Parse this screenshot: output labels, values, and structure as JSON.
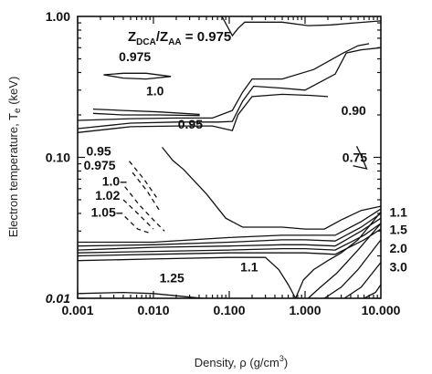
{
  "chart_data": {
    "type": "contour",
    "title": "Z_DCA/Z_AA = 0.975",
    "title_parts": {
      "z1": "Z",
      "sub1": "DCA",
      "sep": "/Z",
      "sub2": "AA",
      "value": " = 0.975"
    },
    "xlabel": "Density, ρ (g/cm",
    "xlabel_sup": "3",
    "xlabel_close": ")",
    "ylabel": "Electron temperature, T",
    "ylabel_sub": "e",
    "ylabel_unit": " (keV)",
    "x_scale": "log",
    "y_scale": "log",
    "xlim": [
      0.001,
      10.0
    ],
    "ylim": [
      0.01,
      1.0
    ],
    "x_ticks": [
      {
        "value": 0.001,
        "label": "0.001"
      },
      {
        "value": 0.01,
        "label": "0.010"
      },
      {
        "value": 0.1,
        "label": "0.100"
      },
      {
        "value": 1.0,
        "label": "1.000"
      },
      {
        "value": 10.0,
        "label": "10.000"
      }
    ],
    "y_ticks": [
      {
        "value": 1.0,
        "label": "1.00"
      },
      {
        "value": 0.1,
        "label": "0.10"
      },
      {
        "value": 0.01,
        "label": "0.01"
      }
    ],
    "contour_labels": [
      {
        "text": "0.975",
        "x": 0.0035,
        "y": 0.48
      },
      {
        "text": "1.0",
        "x": 0.008,
        "y": 0.275
      },
      {
        "text": "0.95",
        "x": 0.021,
        "y": 0.16
      },
      {
        "text": "0.90",
        "x": 3.0,
        "y": 0.2
      },
      {
        "text": "0.75",
        "x": 3.1,
        "y": 0.093
      },
      {
        "text": "0.95",
        "x": 0.0013,
        "y": 0.103
      },
      {
        "text": "0.975",
        "x": 0.0012,
        "y": 0.082
      },
      {
        "text": "1.0–",
        "x": 0.0021,
        "y": 0.063
      },
      {
        "text": "1.02",
        "x": 0.0017,
        "y": 0.05
      },
      {
        "text": "1.05–",
        "x": 0.0015,
        "y": 0.038
      },
      {
        "text": "1.1",
        "x": 0.14,
        "y": 0.0155
      },
      {
        "text": "1.25",
        "x": 0.012,
        "y": 0.013
      },
      {
        "text": "1.1",
        "x": 13.0,
        "y": 0.038
      },
      {
        "text": "1.5",
        "x": 13.0,
        "y": 0.0285
      },
      {
        "text": "2.0",
        "x": 13.0,
        "y": 0.021
      },
      {
        "text": "3.0",
        "x": 13.0,
        "y": 0.0155
      }
    ],
    "contours": [
      {
        "label": "0.975",
        "style": "solid",
        "points": [
          [
            0.08,
            1.0
          ],
          [
            0.11,
            0.73
          ],
          [
            0.13,
            0.82
          ],
          [
            0.16,
            0.91
          ],
          [
            0.26,
            0.91
          ],
          [
            0.5,
            0.91
          ],
          [
            1.1,
            0.86
          ],
          [
            2.2,
            0.87
          ],
          [
            4.5,
            0.9
          ],
          [
            10.0,
            0.93
          ]
        ]
      },
      {
        "label": "0.975",
        "style": "solid",
        "points": [
          [
            0.0022,
            0.385
          ],
          [
            0.004,
            0.365
          ],
          [
            0.008,
            0.36
          ],
          [
            0.017,
            0.375
          ],
          [
            0.008,
            0.395
          ],
          [
            0.004,
            0.395
          ],
          [
            0.0022,
            0.385
          ]
        ]
      },
      {
        "label": "1.0",
        "style": "solid",
        "points": [
          [
            0.0016,
            0.22
          ],
          [
            0.004,
            0.215
          ],
          [
            0.012,
            0.21
          ],
          [
            0.04,
            0.202
          ],
          [
            0.04,
            0.198
          ],
          [
            0.012,
            0.2
          ],
          [
            0.004,
            0.2
          ],
          [
            0.0016,
            0.205
          ]
        ]
      },
      {
        "label": "",
        "style": "solid",
        "points": [
          [
            0.001,
            0.183
          ],
          [
            0.005,
            0.188
          ],
          [
            0.02,
            0.19
          ],
          [
            0.06,
            0.19
          ],
          [
            0.11,
            0.215
          ],
          [
            0.15,
            0.29
          ],
          [
            0.2,
            0.36
          ],
          [
            0.5,
            0.36
          ],
          [
            1.3,
            0.42
          ],
          [
            3.2,
            0.55
          ],
          [
            5.0,
            0.62
          ],
          [
            7.0,
            0.64
          ]
        ]
      },
      {
        "label": "0.95",
        "style": "solid",
        "points": [
          [
            0.001,
            0.16
          ],
          [
            0.005,
            0.175
          ],
          [
            0.02,
            0.178
          ],
          [
            0.07,
            0.178
          ],
          [
            0.11,
            0.18
          ],
          [
            0.15,
            0.25
          ],
          [
            0.21,
            0.32
          ],
          [
            0.5,
            0.31
          ],
          [
            1.0,
            0.3
          ],
          [
            2.5,
            0.39
          ],
          [
            3.5,
            0.55
          ],
          [
            5.5,
            0.58
          ],
          [
            10.0,
            0.6
          ]
        ]
      },
      {
        "label": "",
        "style": "solid",
        "points": [
          [
            0.001,
            0.15
          ],
          [
            0.005,
            0.165
          ],
          [
            0.02,
            0.167
          ],
          [
            0.06,
            0.167
          ],
          [
            0.11,
            0.155
          ],
          [
            0.13,
            0.2
          ],
          [
            0.2,
            0.27
          ],
          [
            0.5,
            0.28
          ],
          [
            1.2,
            0.275
          ],
          [
            2.0,
            0.27
          ]
        ]
      },
      {
        "label": "0.90",
        "style": "solid",
        "points": [
          [
            0.013,
            0.118
          ],
          [
            0.018,
            0.095
          ],
          [
            0.025,
            0.082
          ],
          [
            0.05,
            0.055
          ],
          [
            0.09,
            0.037
          ],
          [
            0.15,
            0.032
          ],
          [
            0.5,
            0.032
          ],
          [
            1.0,
            0.031
          ],
          [
            1.8,
            0.031
          ],
          [
            3.0,
            0.036
          ],
          [
            5.5,
            0.042
          ],
          [
            10.0,
            0.045
          ]
        ]
      },
      {
        "label": "0.75",
        "style": "solid",
        "points": [
          [
            4.3,
            0.087
          ],
          [
            6.5,
            0.083
          ],
          [
            5.4,
            0.105
          ],
          [
            4.8,
            0.12
          ]
        ]
      },
      {
        "label": "0.95",
        "style": "dashed",
        "points": [
          [
            0.0048,
            0.094
          ],
          [
            0.0075,
            0.07
          ],
          [
            0.011,
            0.052
          ]
        ]
      },
      {
        "label": "0.975",
        "style": "dashed",
        "points": [
          [
            0.0053,
            0.078
          ],
          [
            0.0082,
            0.058
          ],
          [
            0.012,
            0.042
          ]
        ]
      },
      {
        "label": "1.0",
        "style": "dashed",
        "points": [
          [
            0.0042,
            0.062
          ],
          [
            0.0065,
            0.046
          ],
          [
            0.01,
            0.036
          ],
          [
            0.014,
            0.03
          ]
        ]
      },
      {
        "label": "1.02",
        "style": "dashed",
        "points": [
          [
            0.004,
            0.05
          ],
          [
            0.0062,
            0.04
          ],
          [
            0.01,
            0.031
          ]
        ]
      },
      {
        "label": "1.05",
        "style": "dashed",
        "points": [
          [
            0.0042,
            0.038
          ],
          [
            0.0062,
            0.031
          ],
          [
            0.009,
            0.029
          ]
        ]
      },
      {
        "label": "",
        "style": "solid",
        "points": [
          [
            0.001,
            0.025
          ],
          [
            0.01,
            0.025
          ],
          [
            0.1,
            0.027
          ],
          [
            0.5,
            0.028
          ],
          [
            1.0,
            0.028
          ],
          [
            2.5,
            0.028
          ],
          [
            5.5,
            0.035
          ],
          [
            10.0,
            0.043
          ]
        ]
      },
      {
        "label": "",
        "style": "solid",
        "points": [
          [
            0.001,
            0.0235
          ],
          [
            0.01,
            0.024
          ],
          [
            0.1,
            0.025
          ],
          [
            0.5,
            0.026
          ],
          [
            1.0,
            0.026
          ],
          [
            2.5,
            0.0255
          ],
          [
            5.5,
            0.032
          ],
          [
            10.0,
            0.04
          ]
        ]
      },
      {
        "label": "",
        "style": "solid",
        "points": [
          [
            0.001,
            0.022
          ],
          [
            0.01,
            0.023
          ],
          [
            0.1,
            0.0235
          ],
          [
            0.5,
            0.024
          ],
          [
            1.0,
            0.024
          ],
          [
            2.5,
            0.0235
          ],
          [
            5.5,
            0.03
          ],
          [
            10.0,
            0.037
          ]
        ]
      },
      {
        "label": "",
        "style": "solid",
        "points": [
          [
            0.001,
            0.021
          ],
          [
            0.01,
            0.0215
          ],
          [
            0.1,
            0.022
          ],
          [
            0.5,
            0.0225
          ],
          [
            1.0,
            0.0225
          ],
          [
            2.5,
            0.022
          ],
          [
            6.0,
            0.028
          ],
          [
            10.0,
            0.034
          ]
        ]
      },
      {
        "label": "",
        "style": "solid",
        "points": [
          [
            0.001,
            0.02
          ],
          [
            0.01,
            0.0205
          ],
          [
            0.1,
            0.021
          ],
          [
            0.5,
            0.021
          ],
          [
            1.0,
            0.021
          ],
          [
            2.5,
            0.0205
          ],
          [
            6.0,
            0.026
          ],
          [
            10.0,
            0.031
          ]
        ]
      },
      {
        "label": "1.1",
        "style": "solid",
        "points": [
          [
            0.001,
            0.0185
          ],
          [
            0.01,
            0.019
          ],
          [
            0.1,
            0.0195
          ],
          [
            0.3,
            0.0195
          ],
          [
            0.45,
            0.016
          ],
          [
            0.6,
            0.0125
          ],
          [
            0.75,
            0.01
          ]
        ]
      },
      {
        "label": "",
        "style": "solid",
        "points": [
          [
            0.75,
            0.01
          ],
          [
            0.95,
            0.0135
          ],
          [
            1.3,
            0.016
          ],
          [
            2.0,
            0.0185
          ],
          [
            3.0,
            0.021
          ],
          [
            5.0,
            0.026
          ],
          [
            10.0,
            0.041
          ]
        ]
      },
      {
        "label": "1.5",
        "style": "solid",
        "points": [
          [
            1.1,
            0.01
          ],
          [
            1.6,
            0.012
          ],
          [
            2.6,
            0.015
          ],
          [
            5.0,
            0.022
          ],
          [
            10.0,
            0.034
          ]
        ]
      },
      {
        "label": "2.0",
        "style": "solid",
        "points": [
          [
            1.8,
            0.01
          ],
          [
            3.0,
            0.012
          ],
          [
            5.0,
            0.016
          ],
          [
            10.0,
            0.026
          ]
        ]
      },
      {
        "label": "3.0",
        "style": "solid",
        "points": [
          [
            3.3,
            0.01
          ],
          [
            5.5,
            0.012
          ],
          [
            10.0,
            0.018
          ]
        ]
      },
      {
        "label": "",
        "style": "solid",
        "points": [
          [
            6.0,
            0.01
          ],
          [
            8.5,
            0.011
          ],
          [
            10.0,
            0.0125
          ]
        ]
      },
      {
        "label": "",
        "style": "solid",
        "points": [
          [
            0.001,
            0.0108
          ],
          [
            0.004,
            0.011
          ],
          [
            0.01,
            0.0108
          ],
          [
            0.03,
            0.0102
          ],
          [
            0.045,
            0.01
          ]
        ]
      }
    ]
  }
}
